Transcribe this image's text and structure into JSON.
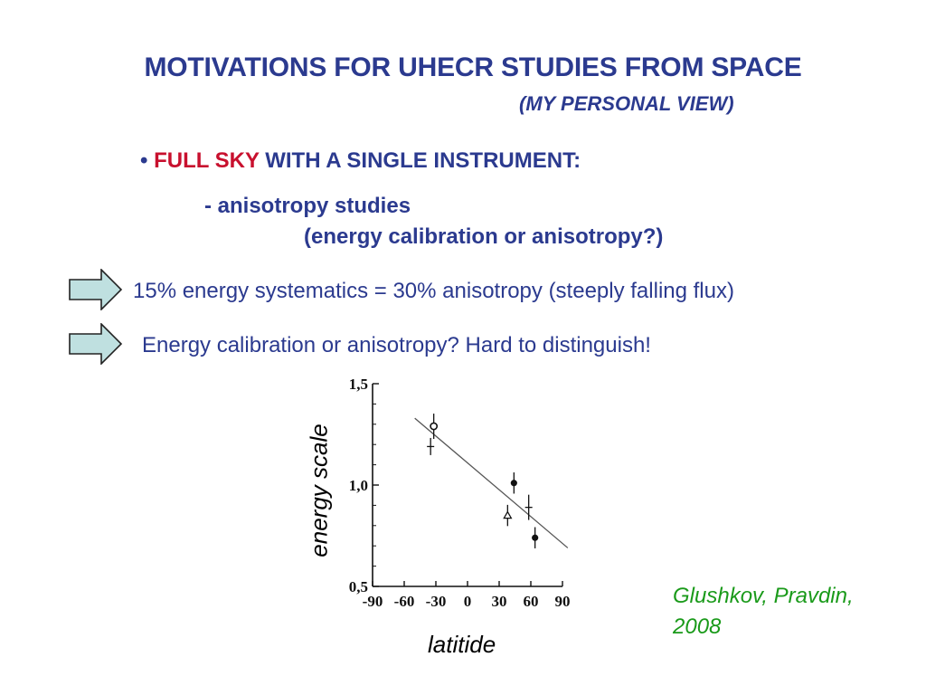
{
  "slide": {
    "title": "MOTIVATIONS FOR UHECR STUDIES FROM SPACE",
    "subtitle": "(MY PERSONAL VIEW)",
    "bullet": {
      "marker": "•",
      "highlight": "FULL SKY",
      "rest": " WITH A SINGLE INSTRUMENT:"
    },
    "sub_item": "- anisotropy studies",
    "sub_item_note": "(energy calibration or anisotropy?)",
    "points": [
      "15% energy systematics = 30% anisotropy (steeply falling flux)",
      "Energy calibration or anisotropy? Hard to distinguish!"
    ],
    "credit": "Glushkov, Pravdin, 2008",
    "colors": {
      "heading": "#2b3a8f",
      "highlight": "#c8102e",
      "credit": "#1a9a1a",
      "arrow_fill": "#bfe0e0"
    },
    "icons": [
      "right-arrow-icon",
      "right-arrow-icon"
    ]
  },
  "chart_data": {
    "type": "scatter",
    "title": "",
    "xlabel": "latitide",
    "ylabel": "energy scale",
    "xlim": [
      -90,
      90
    ],
    "ylim": [
      0.5,
      1.5
    ],
    "x_ticks": [
      "-90",
      "-60",
      "-30",
      "0",
      "30",
      "60",
      "90"
    ],
    "y_ticks": [
      "0,5",
      "1,0",
      "1,5"
    ],
    "points": [
      {
        "x": -32,
        "y": 1.29,
        "err": 0.04,
        "marker": "open-circle"
      },
      {
        "x": -35,
        "y": 1.19,
        "err": 0.02,
        "marker": "cross"
      },
      {
        "x": 44,
        "y": 1.01,
        "err": 0.03,
        "marker": "filled-circle"
      },
      {
        "x": 58,
        "y": 0.89,
        "err": 0.04,
        "marker": "cross"
      },
      {
        "x": 38,
        "y": 0.85,
        "err": 0.03,
        "marker": "open-triangle"
      },
      {
        "x": 64,
        "y": 0.74,
        "err": 0.03,
        "marker": "filled-circle"
      }
    ],
    "fit_line": {
      "x": [
        -50,
        95
      ],
      "y": [
        1.33,
        0.69
      ]
    }
  }
}
